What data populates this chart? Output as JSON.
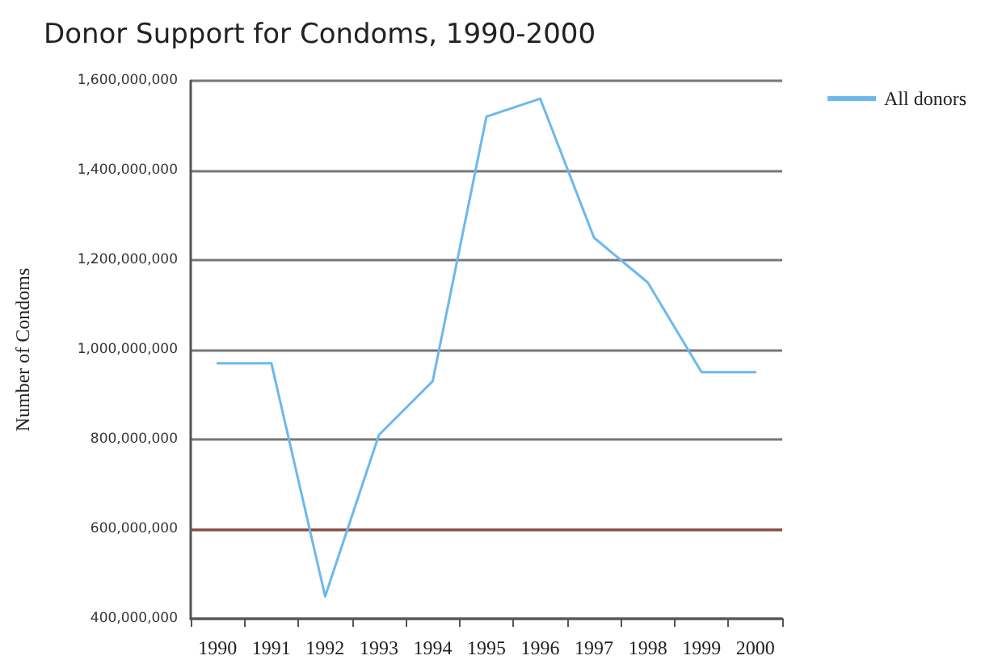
{
  "chart_data": {
    "type": "line",
    "title": "Donor Support for Condoms, 1990-2000",
    "ylabel": "Number of Condoms",
    "categories": [
      "1990",
      "1991",
      "1992",
      "1993",
      "1994",
      "1995",
      "1996",
      "1997",
      "1998",
      "1999",
      "2000"
    ],
    "series": [
      {
        "name": "All donors",
        "color": "#6cb8ee",
        "values": [
          970000000,
          970000000,
          450000000,
          810000000,
          930000000,
          1520000000,
          1560000000,
          1250000000,
          1150000000,
          950000000,
          950000000
        ]
      }
    ],
    "ylim": [
      400000000,
      1600000000
    ],
    "yticks": [
      {
        "value": 400000000,
        "label": "400,000,000"
      },
      {
        "value": 600000000,
        "label": "600,000,000"
      },
      {
        "value": 800000000,
        "label": "800,000,000"
      },
      {
        "value": 1000000000,
        "label": "1,000,000,000"
      },
      {
        "value": 1200000000,
        "label": "1,200,000,000"
      },
      {
        "value": 1400000000,
        "label": "1,400,000,000"
      },
      {
        "value": 1600000000,
        "label": "1,600,000,000"
      }
    ],
    "ref_lines": [
      {
        "axis": "y",
        "value": 600000000,
        "label": null,
        "color": "#8b4a3a"
      }
    ],
    "grid": "y",
    "legend": "top right",
    "marker": "none",
    "line_style": "solid"
  }
}
